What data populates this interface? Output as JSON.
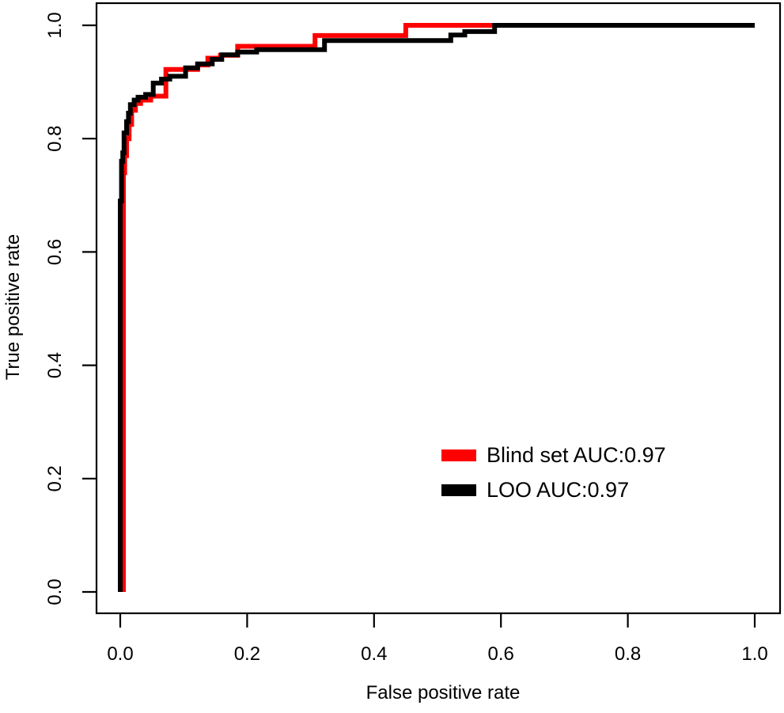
{
  "figure": {
    "background": "#ffffff",
    "axis_color": "#000000",
    "text_color": "#000000"
  },
  "chart_data": {
    "type": "line",
    "subtype": "roc-step-curves",
    "title": "",
    "xlabel": "False positive rate",
    "ylabel": "True positive rate",
    "xlim": [
      0.0,
      1.0
    ],
    "ylim": [
      0.0,
      1.0
    ],
    "grid": false,
    "x_ticks": [
      0.0,
      0.2,
      0.4,
      0.6,
      0.8,
      1.0
    ],
    "y_ticks": [
      0.0,
      0.2,
      0.4,
      0.6,
      0.8,
      1.0
    ],
    "x_tick_labels": [
      "0.0",
      "0.2",
      "0.4",
      "0.6",
      "0.8",
      "1.0"
    ],
    "y_tick_labels": [
      "0.0",
      "0.2",
      "0.4",
      "0.6",
      "0.8",
      "1.0"
    ],
    "legend": {
      "position": "inside-right-center",
      "entries": [
        {
          "label": "Blind set AUC:0.97",
          "color": "#ff0000",
          "auc": "0.97"
        },
        {
          "label": "LOO AUC:0.97",
          "color": "#000000",
          "auc": "0.97"
        }
      ]
    },
    "series": [
      {
        "name": "Blind set",
        "color": "#ff0000",
        "points": [
          [
            0.005,
            0.0
          ],
          [
            0.005,
            0.74
          ],
          [
            0.007,
            0.74
          ],
          [
            0.007,
            0.77
          ],
          [
            0.01,
            0.77
          ],
          [
            0.01,
            0.8
          ],
          [
            0.014,
            0.8
          ],
          [
            0.014,
            0.825
          ],
          [
            0.018,
            0.825
          ],
          [
            0.018,
            0.85
          ],
          [
            0.024,
            0.85
          ],
          [
            0.024,
            0.862
          ],
          [
            0.032,
            0.862
          ],
          [
            0.032,
            0.868
          ],
          [
            0.048,
            0.868
          ],
          [
            0.048,
            0.875
          ],
          [
            0.072,
            0.875
          ],
          [
            0.072,
            0.922
          ],
          [
            0.122,
            0.922
          ],
          [
            0.122,
            0.93
          ],
          [
            0.138,
            0.93
          ],
          [
            0.138,
            0.942
          ],
          [
            0.158,
            0.942
          ],
          [
            0.158,
            0.947
          ],
          [
            0.185,
            0.947
          ],
          [
            0.185,
            0.963
          ],
          [
            0.307,
            0.963
          ],
          [
            0.307,
            0.982
          ],
          [
            0.45,
            0.982
          ],
          [
            0.45,
            1.0
          ],
          [
            1.0,
            1.0
          ]
        ]
      },
      {
        "name": "LOO",
        "color": "#000000",
        "points": [
          [
            0.0,
            0.0
          ],
          [
            0.0,
            0.69
          ],
          [
            0.002,
            0.69
          ],
          [
            0.002,
            0.76
          ],
          [
            0.004,
            0.76
          ],
          [
            0.004,
            0.775
          ],
          [
            0.006,
            0.775
          ],
          [
            0.006,
            0.81
          ],
          [
            0.01,
            0.81
          ],
          [
            0.01,
            0.83
          ],
          [
            0.013,
            0.83
          ],
          [
            0.013,
            0.845
          ],
          [
            0.016,
            0.845
          ],
          [
            0.016,
            0.86
          ],
          [
            0.022,
            0.86
          ],
          [
            0.022,
            0.868
          ],
          [
            0.028,
            0.868
          ],
          [
            0.028,
            0.873
          ],
          [
            0.04,
            0.873
          ],
          [
            0.04,
            0.878
          ],
          [
            0.052,
            0.878
          ],
          [
            0.052,
            0.898
          ],
          [
            0.065,
            0.898
          ],
          [
            0.065,
            0.905
          ],
          [
            0.078,
            0.905
          ],
          [
            0.078,
            0.91
          ],
          [
            0.103,
            0.91
          ],
          [
            0.103,
            0.925
          ],
          [
            0.122,
            0.925
          ],
          [
            0.122,
            0.932
          ],
          [
            0.145,
            0.932
          ],
          [
            0.145,
            0.94
          ],
          [
            0.16,
            0.94
          ],
          [
            0.16,
            0.948
          ],
          [
            0.185,
            0.948
          ],
          [
            0.185,
            0.953
          ],
          [
            0.215,
            0.953
          ],
          [
            0.215,
            0.957
          ],
          [
            0.322,
            0.957
          ],
          [
            0.322,
            0.973
          ],
          [
            0.521,
            0.973
          ],
          [
            0.521,
            0.983
          ],
          [
            0.543,
            0.983
          ],
          [
            0.543,
            0.989
          ],
          [
            0.59,
            0.989
          ],
          [
            0.59,
            1.0
          ],
          [
            1.0,
            1.0
          ]
        ]
      }
    ]
  }
}
